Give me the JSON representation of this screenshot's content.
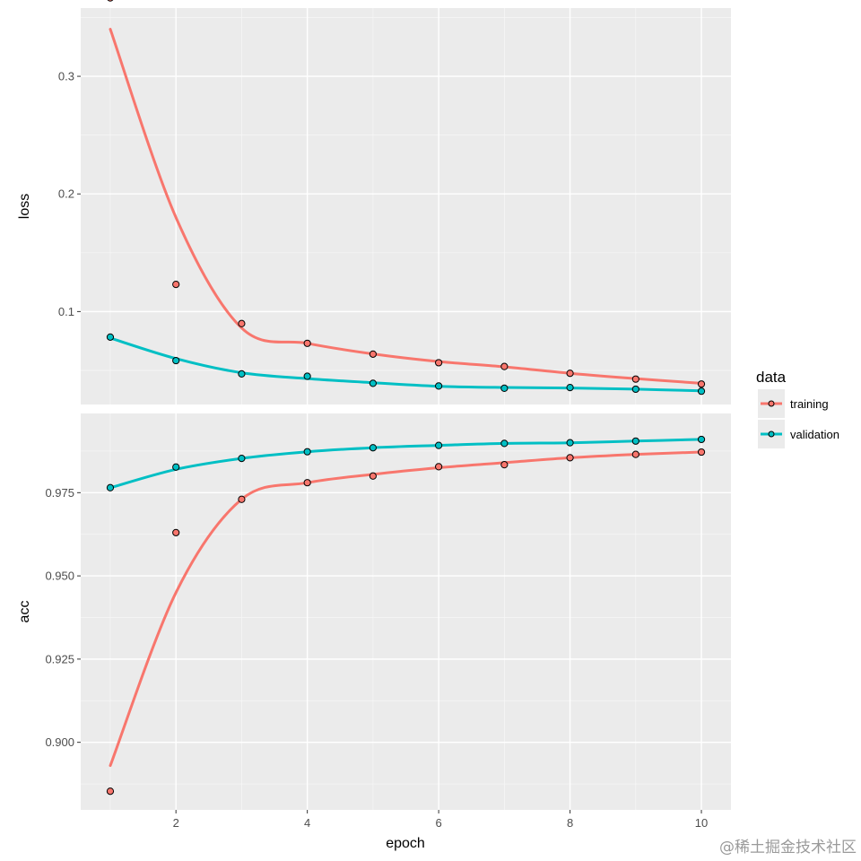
{
  "chart_data": {
    "type": "line",
    "x": [
      1,
      2,
      3,
      4,
      5,
      6,
      7,
      8,
      9,
      10
    ],
    "xlabel": "epoch",
    "x_ticks": [
      2,
      4,
      6,
      8,
      10
    ],
    "xlim": [
      0.55,
      10.45
    ],
    "grid": true,
    "legend": {
      "title": "data",
      "placement": "right",
      "entries": [
        "training",
        "validation"
      ]
    },
    "colors": {
      "training": "#F8766D",
      "validation": "#00BFC4"
    },
    "panels": [
      {
        "ylabel": "loss",
        "ylim": [
          0.021,
          0.358
        ],
        "y_ticks": [
          0.1,
          0.2,
          0.3
        ],
        "y_tick_labels": [
          "0.1",
          "0.2",
          "0.3"
        ],
        "series": [
          {
            "name": "training",
            "points": [
              0.3667,
              0.1231,
              0.0898,
              0.073,
              0.0638,
              0.0565,
              0.0533,
              0.0475,
              0.0426,
              0.0384
            ],
            "smooth": [
              0.34,
              0.18,
              0.086,
              0.073,
              0.064,
              0.0575,
              0.053,
              0.0475,
              0.043,
              0.039
            ]
          },
          {
            "name": "validation",
            "points": [
              0.0783,
              0.0583,
              0.047,
              0.045,
              0.039,
              0.0367,
              0.0348,
              0.0354,
              0.034,
              0.0323
            ],
            "smooth": [
              0.0775,
              0.06,
              0.048,
              0.043,
              0.0395,
              0.0365,
              0.0355,
              0.035,
              0.034,
              0.0327
            ]
          }
        ]
      },
      {
        "ylabel": "acc",
        "ylim": [
          0.8797,
          0.9988
        ],
        "y_ticks": [
          0.9,
          0.925,
          0.95,
          0.975
        ],
        "y_tick_labels": [
          "0.900",
          "0.925",
          "0.950",
          "0.975"
        ],
        "series": [
          {
            "name": "training",
            "points": [
              0.8853,
              0.963,
              0.973,
              0.978,
              0.98,
              0.9828,
              0.9834,
              0.9855,
              0.9865,
              0.9872
            ],
            "smooth": [
              0.893,
              0.945,
              0.973,
              0.978,
              0.9805,
              0.9825,
              0.984,
              0.9855,
              0.9865,
              0.9872
            ]
          },
          {
            "name": "validation",
            "points": [
              0.9765,
              0.9827,
              0.9853,
              0.9873,
              0.9885,
              0.9892,
              0.9898,
              0.99,
              0.9905,
              0.991
            ],
            "smooth": [
              0.9765,
              0.982,
              0.9853,
              0.9873,
              0.9885,
              0.9892,
              0.9898,
              0.99,
              0.9905,
              0.991
            ]
          }
        ]
      }
    ]
  },
  "watermark": "@稀土掘金技术社区"
}
